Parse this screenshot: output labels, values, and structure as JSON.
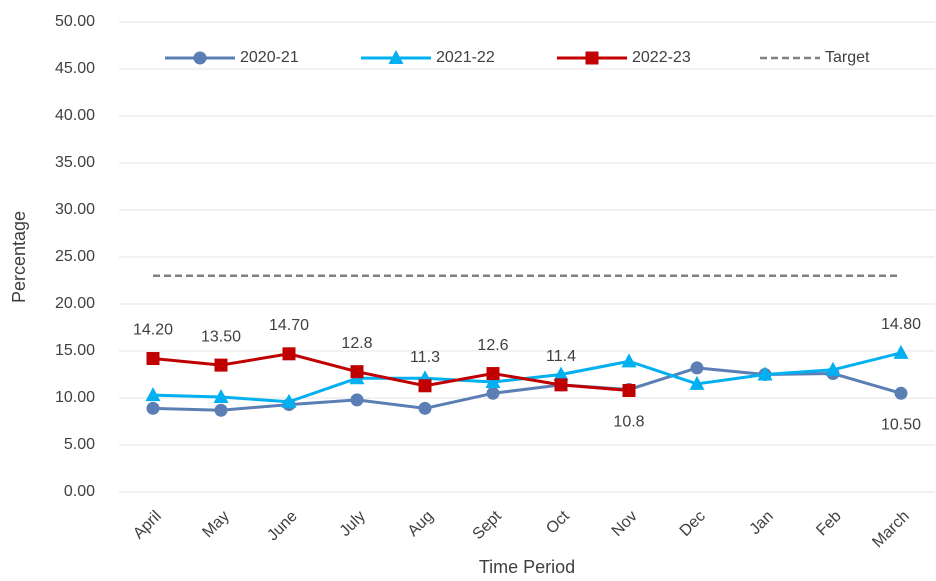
{
  "chart_data": {
    "type": "line",
    "x_label": "Time Period",
    "y_label": "Percentage",
    "categories": [
      "April",
      "May",
      "June",
      "July",
      "Aug",
      "Sept",
      "Oct",
      "Nov",
      "Dec",
      "Jan",
      "Feb",
      "March"
    ],
    "series": [
      {
        "name": "2020-21",
        "color": "#5b7fb5",
        "marker": "circle",
        "values": [
          8.9,
          8.7,
          9.3,
          9.8,
          8.9,
          10.5,
          11.4,
          10.9,
          13.2,
          12.5,
          12.6,
          10.5
        ],
        "value_labels": [
          null,
          null,
          null,
          null,
          null,
          null,
          null,
          null,
          null,
          null,
          null,
          "10.50"
        ]
      },
      {
        "name": "2021-22",
        "color": "#00b0f0",
        "marker": "triangle",
        "values": [
          10.3,
          10.1,
          9.6,
          12.1,
          12.1,
          11.7,
          12.5,
          13.9,
          11.5,
          12.5,
          13.0,
          14.8
        ],
        "value_labels": [
          null,
          null,
          null,
          null,
          null,
          null,
          null,
          null,
          null,
          null,
          null,
          "14.80"
        ]
      },
      {
        "name": "2022-23",
        "color": "#c00000",
        "marker": "square",
        "values": [
          14.2,
          13.5,
          14.7,
          12.8,
          11.3,
          12.6,
          11.4,
          10.8,
          null,
          null,
          null,
          null
        ],
        "value_labels": [
          "14.20",
          "13.50",
          "14.70",
          "12.8",
          "11.3",
          "12.6",
          "11.4",
          "10.8",
          null,
          null,
          null,
          null
        ]
      },
      {
        "name": "Target",
        "color": "#808080",
        "marker": "none",
        "dashed": true,
        "values": [
          23,
          23,
          23,
          23,
          23,
          23,
          23,
          23,
          23,
          23,
          23,
          23
        ]
      }
    ],
    "ylim": [
      0,
      50
    ],
    "yticks": [
      {
        "value": 0,
        "label": "0.00"
      },
      {
        "value": 5,
        "label": "5.00"
      },
      {
        "value": 10,
        "label": "10.00"
      },
      {
        "value": 15,
        "label": "15.00"
      },
      {
        "value": 20,
        "label": "20.00"
      },
      {
        "value": 25,
        "label": "25.00"
      },
      {
        "value": 30,
        "label": "30.00"
      },
      {
        "value": 35,
        "label": "35.00"
      },
      {
        "value": 40,
        "label": "40.00"
      },
      {
        "value": 45,
        "label": "45.00"
      },
      {
        "value": 50,
        "label": "50.00"
      }
    ],
    "grid": true,
    "legend": "top"
  }
}
